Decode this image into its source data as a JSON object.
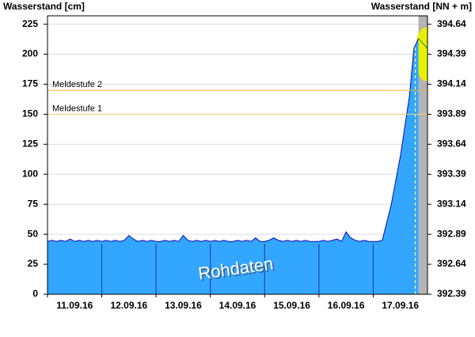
{
  "chart_data": {
    "type": "area",
    "title": "Wasserstand [cm]",
    "y2_title": "Wasserstand [NN + m]",
    "annotation": "Rohdaten",
    "color": "#33a6ff",
    "line_color": "#0a0ab4",
    "categories": [
      "11.09.16",
      "12.09.16",
      "13.09.16",
      "14.09.16",
      "15.09.16",
      "16.09.16",
      "17.09.16"
    ],
    "values": [
      [
        44,
        45,
        44,
        45,
        44,
        46,
        44,
        45,
        44,
        45,
        44,
        45
      ],
      [
        44,
        45,
        44,
        45,
        44,
        45,
        49,
        46,
        44,
        45,
        44,
        45
      ],
      [
        44,
        44,
        45,
        44,
        45,
        44,
        49,
        45,
        44,
        45,
        44,
        45
      ],
      [
        44,
        45,
        44,
        45,
        44,
        44,
        45,
        44,
        45,
        44,
        47,
        44
      ],
      [
        44,
        45,
        47,
        45,
        44,
        45,
        44,
        45,
        44,
        45,
        44,
        44
      ],
      [
        44,
        45,
        44,
        45,
        46,
        44,
        52,
        47,
        45,
        44,
        45,
        44
      ],
      [
        44,
        44,
        45,
        60,
        75,
        95,
        115,
        140,
        165,
        205,
        213,
        null
      ]
    ],
    "ylim": [
      0,
      232
    ],
    "yticks": [
      0,
      25,
      50,
      75,
      100,
      125,
      150,
      175,
      200,
      225
    ],
    "y2lim": [
      392.39,
      394.71
    ],
    "y2ticks": [
      392.39,
      392.64,
      392.89,
      393.14,
      393.39,
      393.64,
      393.89,
      394.14,
      394.39,
      394.64
    ],
    "grid": true,
    "thresholds": [
      {
        "label": "Meldestufe 2",
        "value": 170,
        "color": "#e8b830"
      },
      {
        "label": "Meldestufe 1",
        "value": 150,
        "color": "#f0d070"
      }
    ]
  }
}
